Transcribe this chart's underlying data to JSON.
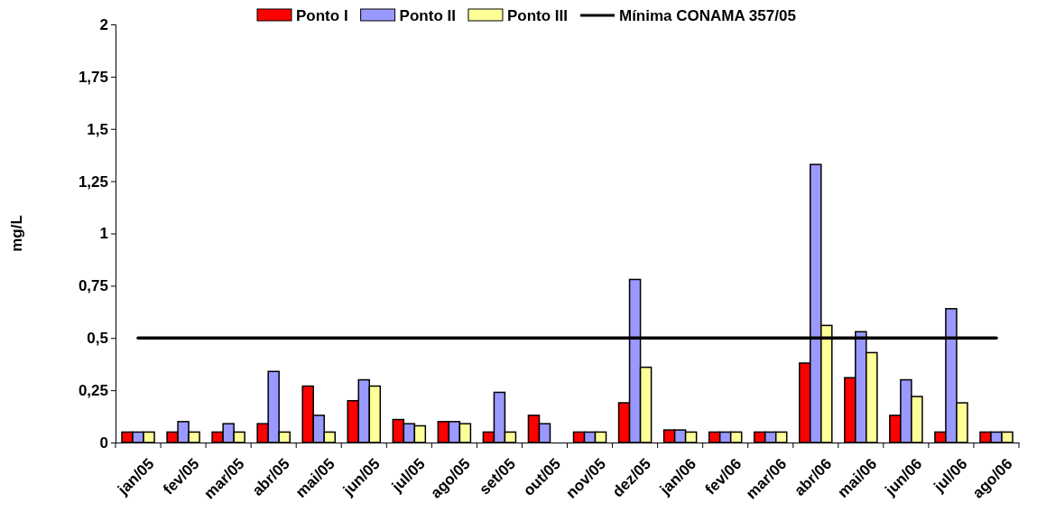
{
  "chart_data": {
    "type": "bar",
    "ylabel": "mg/L",
    "categories": [
      "jan/05",
      "fev/05",
      "mar/05",
      "abr/05",
      "mai/05",
      "jun/05",
      "jul/05",
      "ago/05",
      "set/05",
      "out/05",
      "nov/05",
      "dez/05",
      "jan/06",
      "fev/06",
      "mar/06",
      "abr/06",
      "mai/06",
      "jun/06",
      "jul/06",
      "ago/06"
    ],
    "series": [
      {
        "name": "Ponto I",
        "color": "#ff0000",
        "values": [
          0.05,
          0.05,
          0.05,
          0.09,
          0.27,
          0.2,
          0.11,
          0.1,
          0.05,
          0.13,
          0.05,
          0.19,
          0.06,
          0.05,
          0.05,
          0.38,
          0.31,
          0.13,
          0.05,
          0.05
        ]
      },
      {
        "name": "Ponto II",
        "color": "#9999ff",
        "values": [
          0.05,
          0.1,
          0.09,
          0.34,
          0.13,
          0.3,
          0.09,
          0.1,
          0.24,
          0.09,
          0.05,
          0.78,
          0.06,
          0.05,
          0.05,
          1.33,
          0.53,
          0.3,
          0.64,
          0.05
        ]
      },
      {
        "name": "Ponto III",
        "color": "#ffff99",
        "values": [
          0.05,
          0.05,
          0.05,
          0.05,
          0.05,
          0.27,
          0.08,
          0.09,
          0.05,
          null,
          0.05,
          0.36,
          0.05,
          0.05,
          0.05,
          0.56,
          0.43,
          0.22,
          0.19,
          0.05
        ]
      },
      {
        "name": "Mínima CONAMA 357/05",
        "type": "line",
        "color": "#000000",
        "values": [
          0.5,
          0.5,
          0.5,
          0.5,
          0.5,
          0.5,
          0.5,
          0.5,
          0.5,
          0.5,
          0.5,
          0.5,
          0.5,
          0.5,
          0.5,
          0.5,
          0.5,
          0.5,
          0.5,
          0.5
        ]
      }
    ],
    "ylim": [
      0,
      2
    ],
    "yticks": [
      0,
      {
        "value": 0.25,
        "label": "0,25"
      },
      {
        "value": 0.5,
        "label": "0,5"
      },
      {
        "value": 0.75,
        "label": "0,75"
      },
      1,
      {
        "value": 1.25,
        "label": "1,25"
      },
      {
        "value": 1.5,
        "label": "1,5"
      },
      {
        "value": 1.75,
        "label": "1,75"
      },
      2
    ],
    "legend": "top",
    "grid": false
  }
}
